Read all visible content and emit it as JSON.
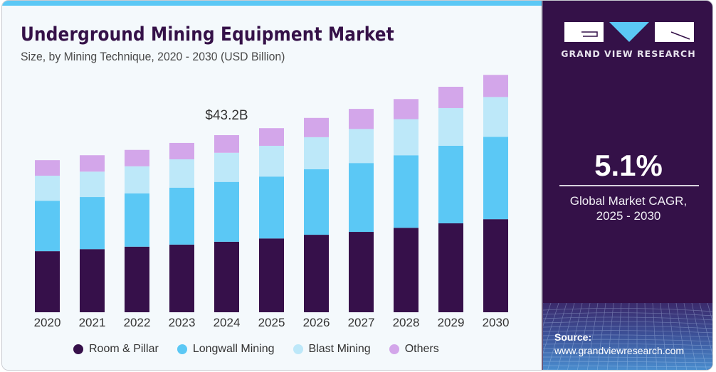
{
  "header": {
    "title": "Underground Mining Equipment Market",
    "subtitle": "Size, by Mining Technique, 2020 - 2030 (USD Billion)"
  },
  "sidebar": {
    "brand": "GRAND VIEW RESEARCH",
    "cagr_value": "5.1%",
    "cagr_label_line1": "Global Market CAGR,",
    "cagr_label_line2": "2025 - 2030",
    "source_title": "Source:",
    "source_url": "www.grandviewresearch.com"
  },
  "colors": {
    "room_pillar": "#36104a",
    "longwall": "#5bc8f5",
    "blast": "#bde8f9",
    "others": "#d3a6ea",
    "brand_bg": "#341148",
    "accent": "#5bc8f5"
  },
  "chart_data": {
    "type": "bar",
    "stacked": true,
    "title": "Underground Mining Equipment Market",
    "subtitle": "Size, by Mining Technique, 2020 - 2030 (USD Billion)",
    "xlabel": "",
    "ylabel": "",
    "ylim": [
      0,
      60
    ],
    "grid": false,
    "legend_position": "bottom",
    "categories": [
      "2020",
      "2021",
      "2022",
      "2023",
      "2024",
      "2025",
      "2026",
      "2027",
      "2028",
      "2029",
      "2030"
    ],
    "series": [
      {
        "name": "Room & Pillar",
        "color": "#36104a",
        "values": [
          14.9,
          15.4,
          16.0,
          16.5,
          17.2,
          18.0,
          18.9,
          19.6,
          20.6,
          21.7,
          22.7
        ]
      },
      {
        "name": "Longwall Mining",
        "color": "#5bc8f5",
        "values": [
          12.3,
          12.7,
          13.0,
          13.9,
          14.6,
          15.1,
          16.0,
          16.8,
          17.7,
          18.9,
          20.1
        ]
      },
      {
        "name": "Blast Mining",
        "color": "#bde8f9",
        "values": [
          6.1,
          6.2,
          6.6,
          6.9,
          7.1,
          7.5,
          7.8,
          8.3,
          8.8,
          9.2,
          9.7
        ]
      },
      {
        "name": "Others",
        "color": "#d3a6ea",
        "values": [
          3.8,
          4.0,
          4.0,
          4.0,
          4.3,
          4.3,
          4.7,
          4.9,
          4.9,
          5.2,
          5.4
        ]
      }
    ],
    "annotations": [
      {
        "category": "2024",
        "text": "$43.2B"
      }
    ]
  }
}
